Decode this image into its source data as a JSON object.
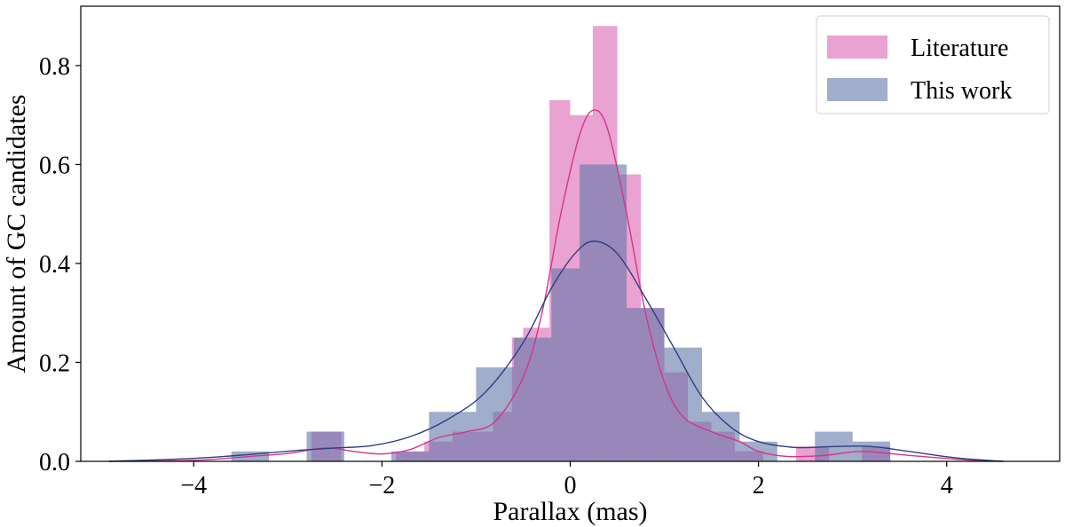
{
  "chart_data": {
    "type": "bar",
    "title": "",
    "xlabel": "Parallax (mas)",
    "ylabel": "Amount of GC candidates",
    "xlim": [
      -5.2,
      5.2
    ],
    "ylim": [
      0,
      0.92
    ],
    "xticks": [
      -4,
      -2,
      0,
      2,
      4
    ],
    "xtick_labels": [
      "−4",
      "−2",
      "0",
      "2",
      "4"
    ],
    "yticks": [
      0.0,
      0.2,
      0.4,
      0.6,
      0.8
    ],
    "ytick_labels": [
      "0.0",
      "0.2",
      "0.4",
      "0.6",
      "0.8"
    ],
    "grid": false,
    "legend_position": "top-right",
    "series": [
      {
        "name": "Literature",
        "color": "#e07bbd",
        "alpha": 0.7,
        "line_color": "#d6338d",
        "bins": [
          [
            -2.75,
            -2.43,
            0.06
          ],
          [
            -1.85,
            -1.55,
            0.02
          ],
          [
            -1.55,
            -1.25,
            0.04
          ],
          [
            -1.25,
            -0.82,
            0.06
          ],
          [
            -0.82,
            -0.62,
            0.1
          ],
          [
            -0.62,
            -0.5,
            0.25
          ],
          [
            -0.5,
            -0.22,
            0.27
          ],
          [
            -0.22,
            0.0,
            0.73
          ],
          [
            0.0,
            0.24,
            0.7
          ],
          [
            0.24,
            0.5,
            0.88
          ],
          [
            0.5,
            0.75,
            0.58
          ],
          [
            0.75,
            1.0,
            0.31
          ],
          [
            1.0,
            1.25,
            0.18
          ],
          [
            1.25,
            1.5,
            0.08
          ],
          [
            1.5,
            1.75,
            0.06
          ],
          [
            1.75,
            2.05,
            0.02
          ],
          [
            2.4,
            2.75,
            0.03
          ],
          [
            3.1,
            3.4,
            0.03
          ]
        ],
        "kde": [
          [
            -4.9,
            0.0
          ],
          [
            -4.0,
            0.002
          ],
          [
            -3.4,
            0.01
          ],
          [
            -3.0,
            0.016
          ],
          [
            -2.6,
            0.027
          ],
          [
            -2.3,
            0.02
          ],
          [
            -2.0,
            0.015
          ],
          [
            -1.7,
            0.024
          ],
          [
            -1.4,
            0.048
          ],
          [
            -1.1,
            0.06
          ],
          [
            -0.8,
            0.08
          ],
          [
            -0.5,
            0.17
          ],
          [
            -0.3,
            0.3
          ],
          [
            -0.1,
            0.5
          ],
          [
            0.1,
            0.66
          ],
          [
            0.25,
            0.71
          ],
          [
            0.4,
            0.67
          ],
          [
            0.6,
            0.5
          ],
          [
            0.8,
            0.3
          ],
          [
            1.0,
            0.16
          ],
          [
            1.2,
            0.09
          ],
          [
            1.5,
            0.06
          ],
          [
            1.8,
            0.04
          ],
          [
            2.0,
            0.02
          ],
          [
            2.3,
            0.01
          ],
          [
            2.7,
            0.012
          ],
          [
            3.1,
            0.02
          ],
          [
            3.6,
            0.012
          ],
          [
            4.2,
            0.003
          ],
          [
            4.6,
            0.0
          ]
        ]
      },
      {
        "name": "This work",
        "color": "#6176a8",
        "alpha": 0.6,
        "line_color": "#2f3f80",
        "bins": [
          [
            -3.6,
            -3.2,
            0.02
          ],
          [
            -2.8,
            -2.4,
            0.06
          ],
          [
            -1.9,
            -1.5,
            0.02
          ],
          [
            -1.5,
            -1.0,
            0.1
          ],
          [
            -1.0,
            -0.6,
            0.19
          ],
          [
            -0.6,
            -0.2,
            0.25
          ],
          [
            -0.2,
            0.1,
            0.39
          ],
          [
            0.1,
            0.6,
            0.6
          ],
          [
            0.6,
            1.0,
            0.31
          ],
          [
            1.0,
            1.4,
            0.23
          ],
          [
            1.4,
            1.8,
            0.1
          ],
          [
            1.8,
            2.2,
            0.04
          ],
          [
            2.6,
            3.0,
            0.06
          ],
          [
            3.0,
            3.4,
            0.04
          ]
        ],
        "kde": [
          [
            -4.9,
            0.0
          ],
          [
            -4.0,
            0.006
          ],
          [
            -3.4,
            0.014
          ],
          [
            -2.9,
            0.022
          ],
          [
            -2.5,
            0.027
          ],
          [
            -2.1,
            0.032
          ],
          [
            -1.7,
            0.05
          ],
          [
            -1.3,
            0.085
          ],
          [
            -0.9,
            0.14
          ],
          [
            -0.5,
            0.24
          ],
          [
            -0.2,
            0.35
          ],
          [
            0.05,
            0.42
          ],
          [
            0.25,
            0.445
          ],
          [
            0.5,
            0.42
          ],
          [
            0.8,
            0.33
          ],
          [
            1.1,
            0.23
          ],
          [
            1.4,
            0.13
          ],
          [
            1.7,
            0.07
          ],
          [
            2.0,
            0.04
          ],
          [
            2.4,
            0.028
          ],
          [
            2.8,
            0.03
          ],
          [
            3.2,
            0.03
          ],
          [
            3.6,
            0.02
          ],
          [
            4.1,
            0.007
          ],
          [
            4.6,
            0.0
          ]
        ]
      }
    ]
  }
}
